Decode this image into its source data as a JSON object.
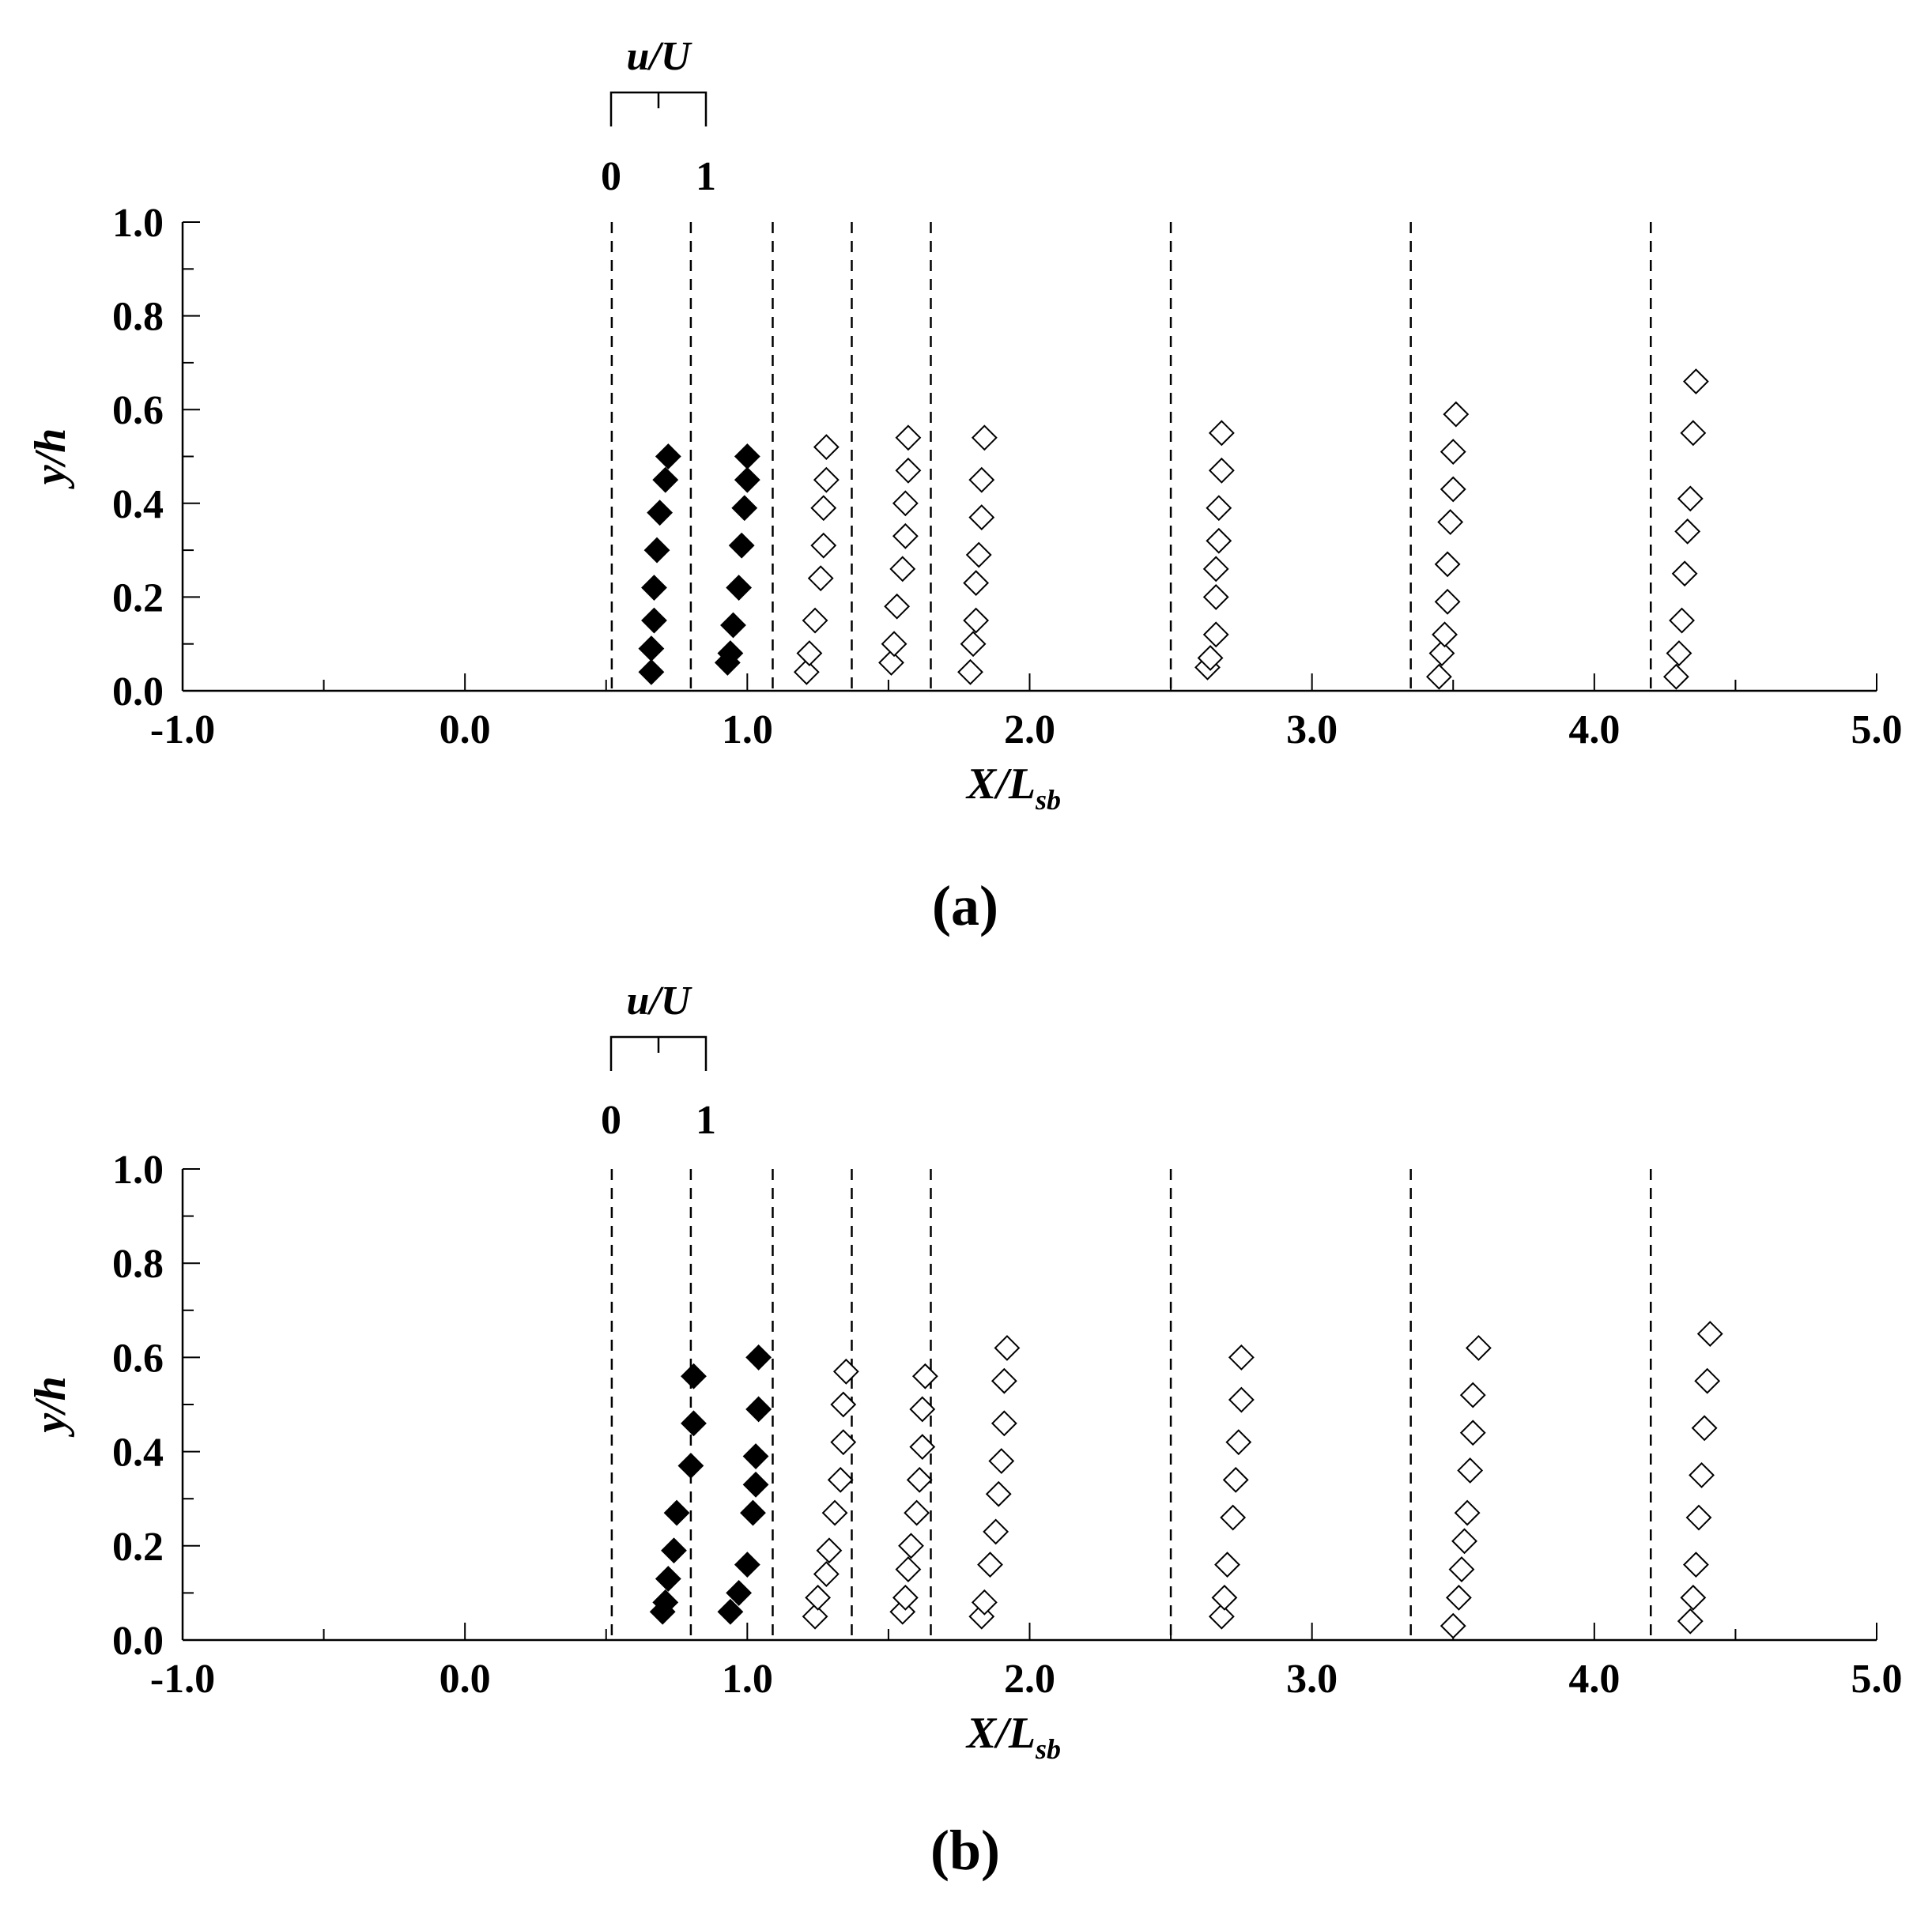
{
  "chart_data": [
    {
      "type": "scatter",
      "caption": "(a)",
      "xlabel": "X/L",
      "xlabel_sub": "sb",
      "ylabel": "y/h",
      "xlim": [
        -1.0,
        5.0
      ],
      "ylim": [
        0.0,
        1.0
      ],
      "x_ticks": [
        "-1.0",
        "0.0",
        "1.0",
        "2.0",
        "3.0",
        "4.0",
        "5.0"
      ],
      "y_ticks": [
        "0.0",
        "0.2",
        "0.4",
        "0.6",
        "0.8",
        "1.0"
      ],
      "scale_bar": {
        "label": "u/U",
        "tick_labels": [
          "0",
          "1"
        ]
      },
      "stations": [
        0.52,
        0.8,
        1.09,
        1.37,
        1.65,
        2.5,
        3.35,
        4.2
      ],
      "series": [
        {
          "filled": true,
          "points": [
            [
              0.66,
              0.04
            ],
            [
              0.66,
              0.09
            ],
            [
              0.67,
              0.15
            ],
            [
              0.67,
              0.22
            ],
            [
              0.68,
              0.3
            ],
            [
              0.69,
              0.38
            ],
            [
              0.71,
              0.45
            ],
            [
              0.72,
              0.5
            ]
          ]
        },
        {
          "filled": true,
          "points": [
            [
              0.93,
              0.06
            ],
            [
              0.94,
              0.08
            ],
            [
              0.95,
              0.14
            ],
            [
              0.97,
              0.22
            ],
            [
              0.98,
              0.31
            ],
            [
              0.99,
              0.39
            ],
            [
              1.0,
              0.45
            ],
            [
              1.0,
              0.5
            ]
          ]
        },
        {
          "filled": false,
          "points": [
            [
              1.21,
              0.04
            ],
            [
              1.22,
              0.08
            ],
            [
              1.24,
              0.15
            ],
            [
              1.26,
              0.24
            ],
            [
              1.27,
              0.31
            ],
            [
              1.27,
              0.39
            ],
            [
              1.28,
              0.45
            ],
            [
              1.28,
              0.52
            ]
          ]
        },
        {
          "filled": false,
          "points": [
            [
              1.51,
              0.06
            ],
            [
              1.52,
              0.1
            ],
            [
              1.53,
              0.18
            ],
            [
              1.55,
              0.26
            ],
            [
              1.56,
              0.33
            ],
            [
              1.56,
              0.4
            ],
            [
              1.57,
              0.47
            ],
            [
              1.57,
              0.54
            ]
          ]
        },
        {
          "filled": false,
          "points": [
            [
              1.79,
              0.04
            ],
            [
              1.8,
              0.1
            ],
            [
              1.81,
              0.15
            ],
            [
              1.81,
              0.23
            ],
            [
              1.82,
              0.29
            ],
            [
              1.83,
              0.37
            ],
            [
              1.83,
              0.45
            ],
            [
              1.84,
              0.54
            ]
          ]
        },
        {
          "filled": false,
          "points": [
            [
              2.63,
              0.05
            ],
            [
              2.64,
              0.07
            ],
            [
              2.66,
              0.12
            ],
            [
              2.66,
              0.2
            ],
            [
              2.66,
              0.26
            ],
            [
              2.67,
              0.32
            ],
            [
              2.67,
              0.39
            ],
            [
              2.68,
              0.47
            ],
            [
              2.68,
              0.55
            ]
          ]
        },
        {
          "filled": false,
          "points": [
            [
              3.45,
              0.03
            ],
            [
              3.46,
              0.08
            ],
            [
              3.47,
              0.12
            ],
            [
              3.48,
              0.19
            ],
            [
              3.48,
              0.27
            ],
            [
              3.49,
              0.36
            ],
            [
              3.5,
              0.43
            ],
            [
              3.5,
              0.51
            ],
            [
              3.51,
              0.59
            ]
          ]
        },
        {
          "filled": false,
          "points": [
            [
              4.29,
              0.03
            ],
            [
              4.3,
              0.08
            ],
            [
              4.31,
              0.15
            ],
            [
              4.32,
              0.25
            ],
            [
              4.33,
              0.34
            ],
            [
              4.34,
              0.41
            ],
            [
              4.35,
              0.55
            ],
            [
              4.36,
              0.66
            ]
          ]
        }
      ]
    },
    {
      "type": "scatter",
      "caption": "(b)",
      "xlabel": "X/L",
      "xlabel_sub": "sb",
      "ylabel": "y/h",
      "xlim": [
        -1.0,
        5.0
      ],
      "ylim": [
        0.0,
        1.0
      ],
      "x_ticks": [
        "-1.0",
        "0.0",
        "1.0",
        "2.0",
        "3.0",
        "4.0",
        "5.0"
      ],
      "y_ticks": [
        "0.0",
        "0.2",
        "0.4",
        "0.6",
        "0.8",
        "1.0"
      ],
      "scale_bar": {
        "label": "u/U",
        "tick_labels": [
          "0",
          "1"
        ]
      },
      "stations": [
        0.52,
        0.8,
        1.09,
        1.37,
        1.65,
        2.5,
        3.35,
        4.2
      ],
      "series": [
        {
          "filled": true,
          "points": [
            [
              0.7,
              0.06
            ],
            [
              0.71,
              0.08
            ],
            [
              0.72,
              0.13
            ],
            [
              0.74,
              0.19
            ],
            [
              0.75,
              0.27
            ],
            [
              0.8,
              0.37
            ],
            [
              0.81,
              0.46
            ],
            [
              0.81,
              0.56
            ]
          ]
        },
        {
          "filled": true,
          "points": [
            [
              0.94,
              0.06
            ],
            [
              0.97,
              0.1
            ],
            [
              1.0,
              0.16
            ],
            [
              1.02,
              0.27
            ],
            [
              1.03,
              0.33
            ],
            [
              1.03,
              0.39
            ],
            [
              1.04,
              0.49
            ],
            [
              1.04,
              0.6
            ]
          ]
        },
        {
          "filled": false,
          "points": [
            [
              1.24,
              0.05
            ],
            [
              1.25,
              0.09
            ],
            [
              1.28,
              0.14
            ],
            [
              1.29,
              0.19
            ],
            [
              1.31,
              0.27
            ],
            [
              1.33,
              0.34
            ],
            [
              1.34,
              0.42
            ],
            [
              1.34,
              0.5
            ],
            [
              1.35,
              0.57
            ]
          ]
        },
        {
          "filled": false,
          "points": [
            [
              1.55,
              0.06
            ],
            [
              1.56,
              0.09
            ],
            [
              1.57,
              0.15
            ],
            [
              1.58,
              0.2
            ],
            [
              1.6,
              0.27
            ],
            [
              1.61,
              0.34
            ],
            [
              1.62,
              0.41
            ],
            [
              1.62,
              0.49
            ],
            [
              1.63,
              0.56
            ]
          ]
        },
        {
          "filled": false,
          "points": [
            [
              1.83,
              0.05
            ],
            [
              1.84,
              0.08
            ],
            [
              1.86,
              0.16
            ],
            [
              1.88,
              0.23
            ],
            [
              1.89,
              0.31
            ],
            [
              1.9,
              0.38
            ],
            [
              1.91,
              0.46
            ],
            [
              1.91,
              0.55
            ],
            [
              1.92,
              0.62
            ]
          ]
        },
        {
          "filled": false,
          "points": [
            [
              2.68,
              0.05
            ],
            [
              2.69,
              0.09
            ],
            [
              2.7,
              0.16
            ],
            [
              2.72,
              0.26
            ],
            [
              2.73,
              0.34
            ],
            [
              2.74,
              0.42
            ],
            [
              2.75,
              0.51
            ],
            [
              2.75,
              0.6
            ]
          ]
        },
        {
          "filled": false,
          "points": [
            [
              3.5,
              0.03
            ],
            [
              3.52,
              0.09
            ],
            [
              3.53,
              0.15
            ],
            [
              3.54,
              0.21
            ],
            [
              3.55,
              0.27
            ],
            [
              3.56,
              0.36
            ],
            [
              3.57,
              0.44
            ],
            [
              3.57,
              0.52
            ],
            [
              3.59,
              0.62
            ]
          ]
        },
        {
          "filled": false,
          "points": [
            [
              4.34,
              0.04
            ],
            [
              4.35,
              0.09
            ],
            [
              4.36,
              0.16
            ],
            [
              4.37,
              0.26
            ],
            [
              4.38,
              0.35
            ],
            [
              4.39,
              0.45
            ],
            [
              4.4,
              0.55
            ],
            [
              4.41,
              0.65
            ]
          ]
        }
      ]
    }
  ]
}
